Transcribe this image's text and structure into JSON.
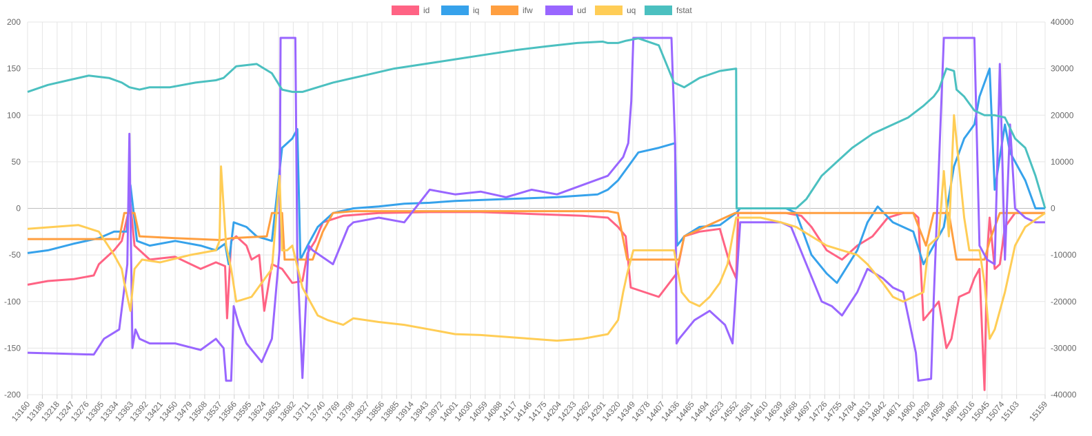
{
  "chart_data": {
    "type": "line",
    "title": "",
    "xlabel": "",
    "ylabel": "",
    "y2label": "",
    "grid": true,
    "legend_position": "top-center",
    "ylim": [
      -200,
      200
    ],
    "y2lim": [
      -40000,
      40000
    ],
    "y_ticks": [
      200,
      150,
      100,
      50,
      0,
      -50,
      -100,
      -150,
      -200
    ],
    "y2_ticks": [
      40000,
      30000,
      20000,
      10000,
      0,
      -10000,
      -20000,
      -30000,
      -40000
    ],
    "x_tick_labels": [
      "13160",
      "13189",
      "13218",
      "13247",
      "13276",
      "13305",
      "13334",
      "13363",
      "13392",
      "13421",
      "13450",
      "13479",
      "13508",
      "13537",
      "13566",
      "13595",
      "13624",
      "13653",
      "13682",
      "13711",
      "13740",
      "13769",
      "13798",
      "13827",
      "13856",
      "13885",
      "13914",
      "13943",
      "13972",
      "14001",
      "14030",
      "14059",
      "14088",
      "14117",
      "14146",
      "14175",
      "14204",
      "14233",
      "14262",
      "14291",
      "14320",
      "14349",
      "14378",
      "14407",
      "14436",
      "14465",
      "14494",
      "14523",
      "14552",
      "14581",
      "14610",
      "14639",
      "14668",
      "14697",
      "14726",
      "14755",
      "14784",
      "14813",
      "14842",
      "14871",
      "14900",
      "14929",
      "14958",
      "14987",
      "15016",
      "15045",
      "15074",
      "15103",
      "15159"
    ],
    "series": [
      {
        "name": "id",
        "color": "#ff6384",
        "axis": "left",
        "x": [
          13160,
          13200,
          13250,
          13290,
          13300,
          13330,
          13345,
          13362,
          13370,
          13400,
          13450,
          13500,
          13530,
          13548,
          13552,
          13560,
          13570,
          13590,
          13600,
          13615,
          13625,
          13640,
          13660,
          13680,
          13700,
          13710,
          13725,
          13740,
          13780,
          13850,
          13950,
          14050,
          14150,
          14250,
          14300,
          14320,
          14335,
          14345,
          14400,
          14435,
          14450,
          14480,
          14520,
          14540,
          14552,
          14556,
          14600,
          14650,
          14680,
          14700,
          14730,
          14760,
          14790,
          14820,
          14850,
          14880,
          14900,
          14910,
          14920,
          14935,
          14950,
          14965,
          14975,
          14990,
          15010,
          15020,
          15030,
          15040,
          15045,
          15050,
          15060,
          15070,
          15080,
          15100,
          15130,
          15159
        ],
        "y": [
          -82,
          -78,
          -76,
          -72,
          -60,
          -45,
          -35,
          5,
          -40,
          -55,
          -52,
          -65,
          -58,
          -62,
          -118,
          -35,
          -30,
          -40,
          -55,
          -50,
          -110,
          -60,
          -65,
          -80,
          -78,
          -48,
          -35,
          -15,
          -8,
          -5,
          -4,
          -4,
          -6,
          -8,
          -10,
          -20,
          -30,
          -85,
          -95,
          -70,
          -30,
          -25,
          -22,
          -60,
          -75,
          -5,
          -5,
          -5,
          -8,
          -20,
          -45,
          -55,
          -40,
          -30,
          -10,
          -5,
          -5,
          -10,
          -120,
          -110,
          -100,
          -150,
          -140,
          -95,
          -90,
          -75,
          -65,
          -195,
          -50,
          -10,
          -65,
          -60,
          -20,
          -5,
          -5,
          -5
        ]
      },
      {
        "name": "iq",
        "color": "#36a2eb",
        "axis": "left",
        "x": [
          13160,
          13200,
          13250,
          13300,
          13330,
          13355,
          13362,
          13375,
          13400,
          13450,
          13500,
          13530,
          13548,
          13555,
          13565,
          13590,
          13610,
          13640,
          13650,
          13660,
          13680,
          13690,
          13696,
          13710,
          13730,
          13760,
          13800,
          13850,
          13900,
          13950,
          14000,
          14100,
          14200,
          14280,
          14300,
          14320,
          14340,
          14360,
          14400,
          14432,
          14436,
          14450,
          14480,
          14520,
          14552,
          14560,
          14600,
          14650,
          14670,
          14700,
          14730,
          14750,
          14790,
          14810,
          14830,
          14860,
          14880,
          14900,
          14920,
          14940,
          14960,
          14980,
          15000,
          15020,
          15030,
          15050,
          15060,
          15080,
          15090,
          15110,
          15120,
          15140,
          15159
        ],
        "y": [
          -48,
          -45,
          -38,
          -32,
          -25,
          -25,
          25,
          -35,
          -40,
          -35,
          -40,
          -45,
          -38,
          -60,
          -15,
          -20,
          -30,
          -35,
          15,
          65,
          75,
          85,
          -55,
          -40,
          -20,
          -5,
          0,
          2,
          5,
          6,
          8,
          10,
          12,
          15,
          20,
          30,
          45,
          60,
          65,
          70,
          -40,
          -30,
          -20,
          -18,
          -5,
          0,
          0,
          0,
          -5,
          -50,
          -70,
          -80,
          -45,
          -15,
          2,
          -15,
          -20,
          -25,
          -60,
          -40,
          -20,
          45,
          75,
          90,
          120,
          150,
          20,
          90,
          60,
          40,
          30,
          0,
          0
        ]
      },
      {
        "name": "ifw",
        "color": "#ff9f40",
        "axis": "left",
        "x": [
          13160,
          13340,
          13350,
          13355,
          13370,
          13380,
          13450,
          13540,
          13560,
          13630,
          13640,
          13660,
          13665,
          13720,
          13740,
          13760,
          13800,
          14300,
          14320,
          14338,
          14440,
          14450,
          14550,
          14560,
          14700,
          14900,
          14925,
          14940,
          14970,
          14985,
          15040,
          15050,
          15070,
          15159
        ],
        "y": [
          -33,
          -33,
          -5,
          -5,
          -5,
          -30,
          -32,
          -34,
          -32,
          -30,
          -5,
          -5,
          -55,
          -55,
          -25,
          -5,
          -3,
          -3,
          -5,
          -55,
          -55,
          -30,
          -5,
          -5,
          -5,
          -5,
          -40,
          -5,
          -5,
          -55,
          -55,
          -35,
          -5,
          -5
        ]
      },
      {
        "name": "ud",
        "color": "#9966ff",
        "axis": "left",
        "x": [
          13160,
          13230,
          13290,
          13310,
          13340,
          13356,
          13360,
          13366,
          13372,
          13380,
          13400,
          13450,
          13500,
          13530,
          13545,
          13550,
          13560,
          13565,
          13575,
          13590,
          13620,
          13640,
          13655,
          13657,
          13686,
          13690,
          13700,
          13712,
          13720,
          13760,
          13790,
          13800,
          13850,
          13900,
          13950,
          14000,
          14050,
          14100,
          14150,
          14200,
          14250,
          14300,
          14330,
          14340,
          14346,
          14350,
          14425,
          14432,
          14435,
          14440,
          14470,
          14500,
          14530,
          14545,
          14560,
          14640,
          14660,
          14690,
          14720,
          14740,
          14760,
          14790,
          14810,
          14840,
          14860,
          14880,
          14905,
          14910,
          14935,
          14940,
          14960,
          14978,
          14985,
          15020,
          15030,
          15045,
          15060,
          15070,
          15080,
          15090,
          15100,
          15120,
          15140,
          15159
        ],
        "y": [
          -155,
          -156,
          -157,
          -140,
          -130,
          -60,
          80,
          -150,
          -130,
          -140,
          -145,
          -145,
          -152,
          -140,
          -150,
          -185,
          -185,
          -105,
          -125,
          -145,
          -165,
          -140,
          -45,
          183,
          183,
          -55,
          -182,
          -40,
          -45,
          -60,
          -20,
          -15,
          -10,
          -15,
          20,
          15,
          18,
          12,
          20,
          15,
          25,
          35,
          55,
          70,
          115,
          183,
          183,
          70,
          -145,
          -140,
          -120,
          -110,
          -125,
          -145,
          -15,
          -15,
          -20,
          -60,
          -100,
          -105,
          -115,
          -90,
          -65,
          -75,
          -85,
          -90,
          -155,
          -185,
          -183,
          -100,
          183,
          183,
          183,
          183,
          -40,
          -55,
          -60,
          155,
          -55,
          90,
          0,
          -10,
          -15,
          -15
        ]
      },
      {
        "name": "uq",
        "color": "#ffcd56",
        "axis": "left",
        "x": [
          13160,
          13210,
          13260,
          13300,
          13330,
          13345,
          13350,
          13356,
          13362,
          13370,
          13385,
          13420,
          13480,
          13530,
          13537,
          13540,
          13550,
          13560,
          13570,
          13600,
          13620,
          13640,
          13655,
          13660,
          13670,
          13680,
          13700,
          13720,
          13730,
          13750,
          13780,
          13800,
          13850,
          13900,
          13950,
          14000,
          14050,
          14100,
          14150,
          14200,
          14250,
          14300,
          14320,
          14330,
          14338,
          14350,
          14400,
          14430,
          14445,
          14460,
          14480,
          14500,
          14520,
          14535,
          14545,
          14552,
          14560,
          14600,
          14640,
          14670,
          14700,
          14730,
          14760,
          14790,
          14810,
          14840,
          14860,
          14880,
          14900,
          14920,
          14930,
          14950,
          14960,
          14970,
          14980,
          15000,
          15010,
          15030,
          15040,
          15050,
          15060,
          15080,
          15100,
          15120,
          15159
        ],
        "y": [
          -22,
          -20,
          -18,
          -25,
          -50,
          -65,
          -80,
          -95,
          -110,
          -65,
          -55,
          -58,
          -50,
          -45,
          -35,
          45,
          -40,
          -65,
          -100,
          -95,
          -80,
          -65,
          35,
          -45,
          -45,
          -40,
          -85,
          -105,
          -115,
          -120,
          -125,
          -118,
          -122,
          -125,
          -130,
          -135,
          -136,
          -138,
          -140,
          -142,
          -140,
          -135,
          -120,
          -90,
          -70,
          -45,
          -45,
          -45,
          -90,
          -100,
          -105,
          -95,
          -80,
          -60,
          -30,
          -10,
          -10,
          -10,
          -15,
          -20,
          -30,
          -40,
          -45,
          -50,
          -60,
          -80,
          -95,
          -100,
          -95,
          -90,
          -40,
          -30,
          40,
          -30,
          100,
          -10,
          -45,
          -45,
          -80,
          -140,
          -130,
          -90,
          -40,
          -20,
          -5
        ]
      },
      {
        "name": "fstat",
        "color": "#4bc0c0",
        "axis": "right",
        "x": [
          13160,
          13200,
          13240,
          13280,
          13320,
          13345,
          13360,
          13380,
          13400,
          13440,
          13490,
          13530,
          13545,
          13570,
          13610,
          13640,
          13660,
          13680,
          13700,
          13760,
          13820,
          13880,
          13940,
          14000,
          14060,
          14120,
          14180,
          14240,
          14290,
          14300,
          14320,
          14336,
          14360,
          14400,
          14430,
          14450,
          14480,
          14520,
          14552,
          14553,
          14600,
          14670,
          14690,
          14720,
          14750,
          14780,
          14820,
          14860,
          14890,
          14920,
          14940,
          14950,
          14965,
          14980,
          14985,
          15000,
          15020,
          15040,
          15060,
          15080,
          15100,
          15120,
          15140,
          15159
        ],
        "y": [
          25000,
          26500,
          27500,
          28500,
          28000,
          27000,
          26000,
          25500,
          26000,
          26000,
          27000,
          27500,
          28000,
          30500,
          31000,
          29000,
          25500,
          25000,
          25000,
          27000,
          28500,
          30000,
          31000,
          32000,
          33000,
          34000,
          34800,
          35500,
          35800,
          35500,
          35500,
          36000,
          36500,
          35000,
          27000,
          26000,
          28000,
          29500,
          30000,
          0,
          0,
          0,
          2000,
          7000,
          10000,
          13000,
          16000,
          18000,
          19500,
          22000,
          24000,
          25500,
          30000,
          29500,
          25500,
          24000,
          21000,
          20000,
          20000,
          19500,
          15000,
          13000,
          7000,
          0
        ]
      }
    ]
  }
}
